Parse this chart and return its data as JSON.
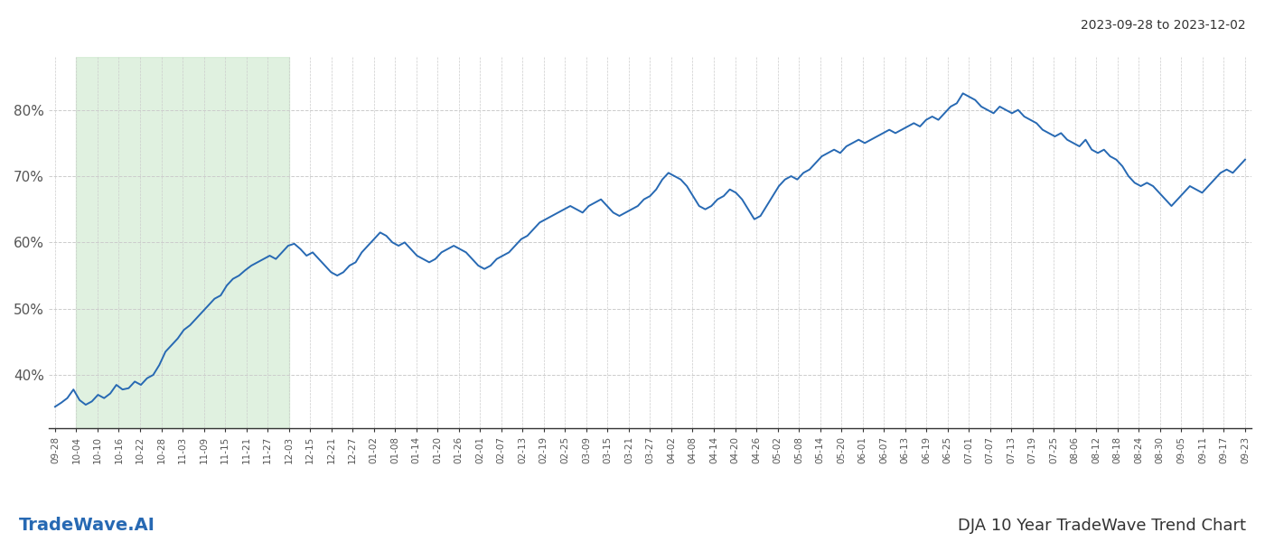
{
  "title_top_right": "2023-09-28 to 2023-12-02",
  "title_bottom_left": "TradeWave.AI",
  "title_bottom_right": "DJA 10 Year TradeWave Trend Chart",
  "line_color": "#2769b3",
  "line_width": 1.4,
  "shade_color": "#c8e6c8",
  "shade_alpha": 0.55,
  "background_color": "#ffffff",
  "ylim": [
    32,
    88
  ],
  "yticks": [
    40,
    50,
    60,
    70,
    80
  ],
  "x_labels": [
    "09-28",
    "10-04",
    "10-10",
    "10-16",
    "10-22",
    "10-28",
    "11-03",
    "11-09",
    "11-15",
    "11-21",
    "11-27",
    "12-03",
    "12-15",
    "12-21",
    "12-27",
    "01-02",
    "01-08",
    "01-14",
    "01-20",
    "01-26",
    "02-01",
    "02-07",
    "02-13",
    "02-19",
    "02-25",
    "03-09",
    "03-15",
    "03-21",
    "03-27",
    "04-02",
    "04-08",
    "04-14",
    "04-20",
    "04-26",
    "05-02",
    "05-08",
    "05-14",
    "05-20",
    "06-01",
    "06-07",
    "06-13",
    "06-19",
    "06-25",
    "07-01",
    "07-07",
    "07-13",
    "07-19",
    "07-25",
    "08-06",
    "08-12",
    "08-18",
    "08-24",
    "08-30",
    "09-05",
    "09-11",
    "09-17",
    "09-23"
  ],
  "shade_start_label": "10-04",
  "shade_end_label": "12-03",
  "y_values": [
    35.2,
    35.8,
    36.5,
    37.8,
    36.2,
    35.5,
    36.0,
    37.0,
    36.5,
    37.2,
    38.5,
    37.8,
    38.0,
    39.0,
    38.5,
    39.5,
    40.0,
    41.5,
    43.5,
    44.5,
    45.5,
    46.8,
    47.5,
    48.5,
    49.5,
    50.5,
    51.5,
    52.0,
    53.5,
    54.5,
    55.0,
    55.8,
    56.5,
    57.0,
    57.5,
    58.0,
    57.5,
    58.5,
    59.5,
    59.8,
    59.0,
    58.0,
    58.5,
    57.5,
    56.5,
    55.5,
    55.0,
    55.5,
    56.5,
    57.0,
    58.5,
    59.5,
    60.5,
    61.5,
    61.0,
    60.0,
    59.5,
    60.0,
    59.0,
    58.0,
    57.5,
    57.0,
    57.5,
    58.5,
    59.0,
    59.5,
    59.0,
    58.5,
    57.5,
    56.5,
    56.0,
    56.5,
    57.5,
    58.0,
    58.5,
    59.5,
    60.5,
    61.0,
    62.0,
    63.0,
    63.5,
    64.0,
    64.5,
    65.0,
    65.5,
    65.0,
    64.5,
    65.5,
    66.0,
    66.5,
    65.5,
    64.5,
    64.0,
    64.5,
    65.0,
    65.5,
    66.5,
    67.0,
    68.0,
    69.5,
    70.5,
    70.0,
    69.5,
    68.5,
    67.0,
    65.5,
    65.0,
    65.5,
    66.5,
    67.0,
    68.0,
    67.5,
    66.5,
    65.0,
    63.5,
    64.0,
    65.5,
    67.0,
    68.5,
    69.5,
    70.0,
    69.5,
    70.5,
    71.0,
    72.0,
    73.0,
    73.5,
    74.0,
    73.5,
    74.5,
    75.0,
    75.5,
    75.0,
    75.5,
    76.0,
    76.5,
    77.0,
    76.5,
    77.0,
    77.5,
    78.0,
    77.5,
    78.5,
    79.0,
    78.5,
    79.5,
    80.5,
    81.0,
    82.5,
    82.0,
    81.5,
    80.5,
    80.0,
    79.5,
    80.5,
    80.0,
    79.5,
    80.0,
    79.0,
    78.5,
    78.0,
    77.0,
    76.5,
    76.0,
    76.5,
    75.5,
    75.0,
    74.5,
    75.5,
    74.0,
    73.5,
    74.0,
    73.0,
    72.5,
    71.5,
    70.0,
    69.0,
    68.5,
    69.0,
    68.5,
    67.5,
    66.5,
    65.5,
    66.5,
    67.5,
    68.5,
    68.0,
    67.5,
    68.5,
    69.5,
    70.5,
    71.0,
    70.5,
    71.5,
    72.5
  ]
}
